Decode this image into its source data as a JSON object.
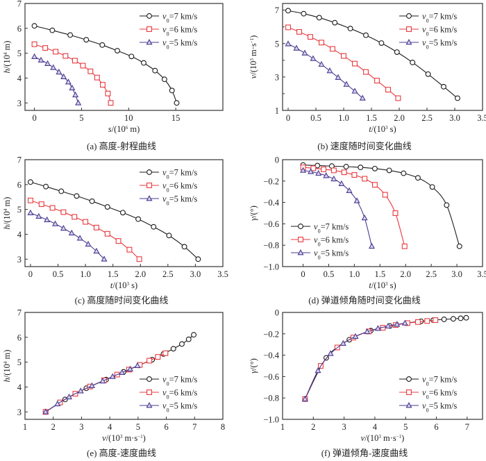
{
  "figure": {
    "panels": [
      {
        "id": "a",
        "caption": "(a) 高度-射程曲线"
      },
      {
        "id": "b",
        "caption": "(b) 速度随时间变化曲线"
      },
      {
        "id": "c",
        "caption": "(c) 高度随时间变化曲线"
      },
      {
        "id": "d",
        "caption": "(d) 弹道倾角随时间变化曲线"
      },
      {
        "id": "e",
        "caption": "(e) 高度-速度曲线"
      },
      {
        "id": "f",
        "caption": "(f) 弹道倾角-速度曲线"
      }
    ]
  },
  "series_styles": [
    {
      "name": "v0=7 km/s",
      "label_var": "v",
      "label_sub": "0",
      "label_rest": "=7 km/s",
      "color": "#1a1a1a",
      "marker": "circle"
    },
    {
      "name": "v0=6 km/s",
      "label_var": "v",
      "label_sub": "0",
      "label_rest": "=6 km/s",
      "color": "#e8383d",
      "marker": "square"
    },
    {
      "name": "v0=5 km/s",
      "label_var": "v",
      "label_sub": "0",
      "label_rest": "=5 km/s",
      "color": "#4b3a8f",
      "marker": "triangle"
    }
  ],
  "chart_data": [
    {
      "id": "a",
      "type": "line",
      "title": "(a) 高度-射程曲线",
      "xlabel": "s/(10^6 m)",
      "ylabel": "h/(10^4 m)",
      "xlabel_parts": {
        "var": "s",
        "pre": "/(10",
        "sup": "6",
        "post": " m)"
      },
      "ylabel_parts": {
        "var": "h",
        "pre": "/(10",
        "sup": "4",
        "post": " m)"
      },
      "xlim": [
        -1,
        20
      ],
      "ylim": [
        2.7,
        7
      ],
      "xticks": [
        0,
        5,
        10,
        15
      ],
      "xtick_labels": [
        "0",
        "5",
        "10",
        "15"
      ],
      "yticks": [
        3,
        4,
        5,
        6,
        7
      ],
      "ytick_labels": [
        "3",
        "4",
        "5",
        "6",
        "7"
      ],
      "legend": "top-right",
      "series": [
        {
          "name": "v0=7 km/s",
          "x": [
            0,
            1.9,
            3.8,
            5.5,
            7.2,
            8.8,
            10.3,
            11.6,
            12.8,
            13.8,
            14.6,
            15.1
          ],
          "y": [
            6.1,
            5.92,
            5.73,
            5.54,
            5.33,
            5.1,
            4.87,
            4.61,
            4.3,
            3.95,
            3.5,
            3.0
          ]
        },
        {
          "name": "v0=6 km/s",
          "x": [
            0,
            1.15,
            2.25,
            3.3,
            4.3,
            5.15,
            5.95,
            6.65,
            7.25,
            7.8,
            8.1
          ],
          "y": [
            5.36,
            5.21,
            5.06,
            4.89,
            4.7,
            4.5,
            4.27,
            4.02,
            3.73,
            3.38,
            3.0
          ]
        },
        {
          "name": "v0=5 km/s",
          "x": [
            0,
            0.7,
            1.4,
            2.0,
            2.6,
            3.1,
            3.6,
            4.0,
            4.35,
            4.65
          ],
          "y": [
            4.86,
            4.72,
            4.58,
            4.42,
            4.24,
            4.05,
            3.84,
            3.6,
            3.32,
            3.0
          ]
        }
      ]
    },
    {
      "id": "b",
      "type": "line",
      "title": "(b) 速度随时间变化曲线",
      "xlabel": "t/(10^3 s)",
      "ylabel": "v/(10^3 m·s^-1)",
      "xlabel_parts": {
        "var": "t",
        "pre": "/(10",
        "sup": "3",
        "post": " s)"
      },
      "ylabel_parts": {
        "var": "v",
        "pre": "/(10",
        "sup": "3",
        "post": " m·s",
        "sup2": "−1",
        "post2": ")"
      },
      "xlim": [
        -0.1,
        3.5
      ],
      "ylim": [
        1,
        7.4
      ],
      "xticks": [
        0,
        0.5,
        1.0,
        1.5,
        2.0,
        2.5,
        3.0,
        3.5
      ],
      "xtick_labels": [
        "0",
        "0.5",
        "1.0",
        "1.5",
        "2.0",
        "2.5",
        "3.0",
        "3.5"
      ],
      "yticks": [
        1,
        3,
        5,
        7
      ],
      "minor_yticks": [
        2,
        4,
        6
      ],
      "ytick_labels": [
        "1",
        "3",
        "5",
        "7"
      ],
      "legend": "top-right",
      "series": [
        {
          "name": "v0=7 km/s",
          "x": [
            0,
            0.28,
            0.56,
            0.84,
            1.12,
            1.4,
            1.68,
            1.96,
            2.24,
            2.52,
            2.8,
            3.05
          ],
          "y": [
            6.97,
            6.79,
            6.55,
            6.25,
            5.9,
            5.5,
            5.03,
            4.49,
            3.87,
            3.17,
            2.42,
            1.73
          ]
        },
        {
          "name": "v0=6 km/s",
          "x": [
            0,
            0.2,
            0.4,
            0.6,
            0.8,
            1.0,
            1.2,
            1.4,
            1.6,
            1.8,
            1.98
          ],
          "y": [
            5.97,
            5.7,
            5.4,
            5.06,
            4.68,
            4.26,
            3.8,
            3.3,
            2.78,
            2.24,
            1.73
          ]
        },
        {
          "name": "v0=5 km/s",
          "x": [
            0,
            0.15,
            0.3,
            0.45,
            0.6,
            0.75,
            0.9,
            1.05,
            1.2,
            1.34
          ],
          "y": [
            4.98,
            4.72,
            4.43,
            4.1,
            3.75,
            3.37,
            2.97,
            2.56,
            2.15,
            1.73
          ]
        }
      ]
    },
    {
      "id": "c",
      "type": "line",
      "title": "(c) 高度随时间变化曲线",
      "xlabel": "t/(10^3 s)",
      "ylabel": "h/(10^4 m)",
      "xlabel_parts": {
        "var": "t",
        "pre": "/(10",
        "sup": "3",
        "post": " s)"
      },
      "ylabel_parts": {
        "var": "h",
        "pre": "/(10",
        "sup": "4",
        "post": " m)"
      },
      "xlim": [
        -0.1,
        3.5
      ],
      "ylim": [
        2.7,
        7
      ],
      "xticks": [
        0,
        0.5,
        1.0,
        1.5,
        2.0,
        2.5,
        3.0,
        3.5
      ],
      "xtick_labels": [
        "0",
        "0.5",
        "1.0",
        "1.5",
        "2.0",
        "2.5",
        "3.0",
        "3.5"
      ],
      "yticks": [
        3,
        4,
        5,
        6,
        7
      ],
      "ytick_labels": [
        "3",
        "4",
        "5",
        "6",
        "7"
      ],
      "legend": "top-right",
      "series": [
        {
          "name": "v0=7 km/s",
          "x": [
            0,
            0.28,
            0.56,
            0.84,
            1.12,
            1.4,
            1.68,
            1.96,
            2.24,
            2.52,
            2.8,
            3.05
          ],
          "y": [
            6.1,
            5.92,
            5.73,
            5.54,
            5.33,
            5.1,
            4.87,
            4.61,
            4.3,
            3.95,
            3.5,
            3.0
          ]
        },
        {
          "name": "v0=6 km/s",
          "x": [
            0,
            0.2,
            0.4,
            0.6,
            0.8,
            1.0,
            1.2,
            1.4,
            1.6,
            1.8,
            1.98
          ],
          "y": [
            5.36,
            5.21,
            5.06,
            4.89,
            4.7,
            4.5,
            4.27,
            4.02,
            3.73,
            3.38,
            3.0
          ]
        },
        {
          "name": "v0=5 km/s",
          "x": [
            0,
            0.15,
            0.3,
            0.45,
            0.6,
            0.75,
            0.9,
            1.05,
            1.2,
            1.34
          ],
          "y": [
            4.86,
            4.72,
            4.58,
            4.42,
            4.24,
            4.05,
            3.84,
            3.6,
            3.32,
            3.0
          ]
        }
      ]
    },
    {
      "id": "d",
      "type": "line",
      "title": "(d) 弹道倾角随时间变化曲线",
      "xlabel": "t/(10^3 s)",
      "ylabel": "γ/(°)",
      "xlabel_parts": {
        "var": "t",
        "pre": "/(10",
        "sup": "3",
        "post": " s)"
      },
      "ylabel_parts": {
        "var": "γ",
        "pre": "/(°)"
      },
      "xlim": [
        -0.4,
        3.5
      ],
      "ylim": [
        -1.0,
        0
      ],
      "xticks": [
        0,
        0.5,
        1.0,
        1.5,
        2.0,
        2.5,
        3.0,
        3.5
      ],
      "xtick_labels": [
        "0",
        "0.5",
        "1.0",
        "1.5",
        "2.0",
        "2.5",
        "3.0",
        "3.5"
      ],
      "yticks": [
        -1.0,
        -0.8,
        -0.6,
        -0.4,
        -0.2,
        0
      ],
      "ytick_labels": [
        "−1.0",
        "−0.8",
        "−0.6",
        "−0.4",
        "−0.2",
        "0"
      ],
      "legend": "bottom-left",
      "series": [
        {
          "name": "v0=7 km/s",
          "x": [
            0,
            0.28,
            0.56,
            0.84,
            1.12,
            1.4,
            1.68,
            1.96,
            2.24,
            2.52,
            2.8,
            3.05
          ],
          "y": [
            -0.05,
            -0.055,
            -0.06,
            -0.065,
            -0.072,
            -0.083,
            -0.1,
            -0.127,
            -0.17,
            -0.255,
            -0.425,
            -0.81
          ]
        },
        {
          "name": "v0=6 km/s",
          "x": [
            0,
            0.2,
            0.4,
            0.6,
            0.8,
            1.0,
            1.2,
            1.4,
            1.6,
            1.8,
            1.98
          ],
          "y": [
            -0.072,
            -0.08,
            -0.09,
            -0.1,
            -0.118,
            -0.143,
            -0.178,
            -0.235,
            -0.328,
            -0.5,
            -0.81
          ]
        },
        {
          "name": "v0=5 km/s",
          "x": [
            0,
            0.15,
            0.3,
            0.45,
            0.6,
            0.75,
            0.9,
            1.05,
            1.2,
            1.34
          ],
          "y": [
            -0.1,
            -0.112,
            -0.128,
            -0.15,
            -0.18,
            -0.225,
            -0.29,
            -0.385,
            -0.545,
            -0.81
          ]
        }
      ]
    },
    {
      "id": "e",
      "type": "line",
      "title": "(e) 高度-速度曲线",
      "xlabel": "v/(10^3 m·s^-1)",
      "ylabel": "h/(10^4 m)",
      "xlabel_parts": {
        "var": "v",
        "pre": "/(10",
        "sup": "3",
        "post": " m·s",
        "sup2": "−1",
        "post2": ")"
      },
      "ylabel_parts": {
        "var": "h",
        "pre": "/(10",
        "sup": "4",
        "post": " m)"
      },
      "xlim": [
        1,
        8
      ],
      "ylim": [
        2.7,
        7
      ],
      "xticks": [
        1,
        2,
        3,
        4,
        5,
        6,
        7,
        8
      ],
      "xtick_labels": [
        "1",
        "2",
        "3",
        "4",
        "5",
        "6",
        "7",
        "8"
      ],
      "yticks": [
        3,
        4,
        5,
        6,
        7
      ],
      "ytick_labels": [
        "3",
        "4",
        "5",
        "6",
        "7"
      ],
      "legend": "bottom-right",
      "series": [
        {
          "name": "v0=7 km/s",
          "x": [
            6.97,
            6.79,
            6.55,
            6.25,
            5.9,
            5.5,
            5.03,
            4.49,
            3.87,
            3.17,
            2.42,
            1.73
          ],
          "y": [
            6.1,
            5.92,
            5.73,
            5.54,
            5.33,
            5.1,
            4.87,
            4.61,
            4.3,
            3.95,
            3.5,
            3.0
          ]
        },
        {
          "name": "v0=6 km/s",
          "x": [
            5.97,
            5.7,
            5.4,
            5.06,
            4.68,
            4.26,
            3.8,
            3.3,
            2.78,
            2.24,
            1.73
          ],
          "y": [
            5.36,
            5.21,
            5.06,
            4.89,
            4.7,
            4.5,
            4.27,
            4.02,
            3.73,
            3.38,
            3.0
          ]
        },
        {
          "name": "v0=5 km/s",
          "x": [
            4.98,
            4.72,
            4.43,
            4.1,
            3.75,
            3.37,
            2.97,
            2.56,
            2.15,
            1.73
          ],
          "y": [
            4.86,
            4.72,
            4.58,
            4.42,
            4.24,
            4.05,
            3.84,
            3.6,
            3.32,
            3.0
          ]
        }
      ]
    },
    {
      "id": "f",
      "type": "line",
      "title": "(f) 弹道倾角-速度曲线",
      "xlabel": "v/(10^3 m·s^-1)",
      "ylabel": "γ/(°)",
      "xlabel_parts": {
        "var": "v",
        "pre": "/(10",
        "sup": "3",
        "post": " m·s",
        "sup2": "−1",
        "post2": ")"
      },
      "ylabel_parts": {
        "var": "γ",
        "pre": "/(°)"
      },
      "xlim": [
        1,
        7.5
      ],
      "ylim": [
        -1.0,
        0
      ],
      "xticks": [
        1,
        2,
        3,
        4,
        5,
        6,
        7
      ],
      "xtick_labels": [
        "1",
        "2",
        "3",
        "4",
        "5",
        "6",
        "7"
      ],
      "yticks": [
        -1.0,
        -0.8,
        -0.6,
        -0.4,
        -0.2,
        0
      ],
      "ytick_labels": [
        "−1.0",
        "−0.8",
        "−0.6",
        "−0.4",
        "−0.2",
        "0"
      ],
      "legend": "bottom-right",
      "series": [
        {
          "name": "v0=7 km/s",
          "x": [
            6.97,
            6.79,
            6.55,
            6.25,
            5.9,
            5.5,
            5.03,
            4.49,
            3.87,
            3.17,
            2.42,
            1.73
          ],
          "y": [
            -0.05,
            -0.055,
            -0.06,
            -0.065,
            -0.072,
            -0.083,
            -0.1,
            -0.127,
            -0.17,
            -0.255,
            -0.425,
            -0.81
          ]
        },
        {
          "name": "v0=6 km/s",
          "x": [
            5.97,
            5.7,
            5.4,
            5.06,
            4.68,
            4.26,
            3.8,
            3.3,
            2.78,
            2.24,
            1.73
          ],
          "y": [
            -0.072,
            -0.08,
            -0.09,
            -0.1,
            -0.118,
            -0.143,
            -0.178,
            -0.235,
            -0.328,
            -0.5,
            -0.81
          ]
        },
        {
          "name": "v0=5 km/s",
          "x": [
            4.98,
            4.72,
            4.43,
            4.1,
            3.75,
            3.37,
            2.97,
            2.56,
            2.15,
            1.73
          ],
          "y": [
            -0.1,
            -0.112,
            -0.128,
            -0.15,
            -0.18,
            -0.225,
            -0.29,
            -0.385,
            -0.545,
            -0.81
          ]
        }
      ]
    }
  ]
}
